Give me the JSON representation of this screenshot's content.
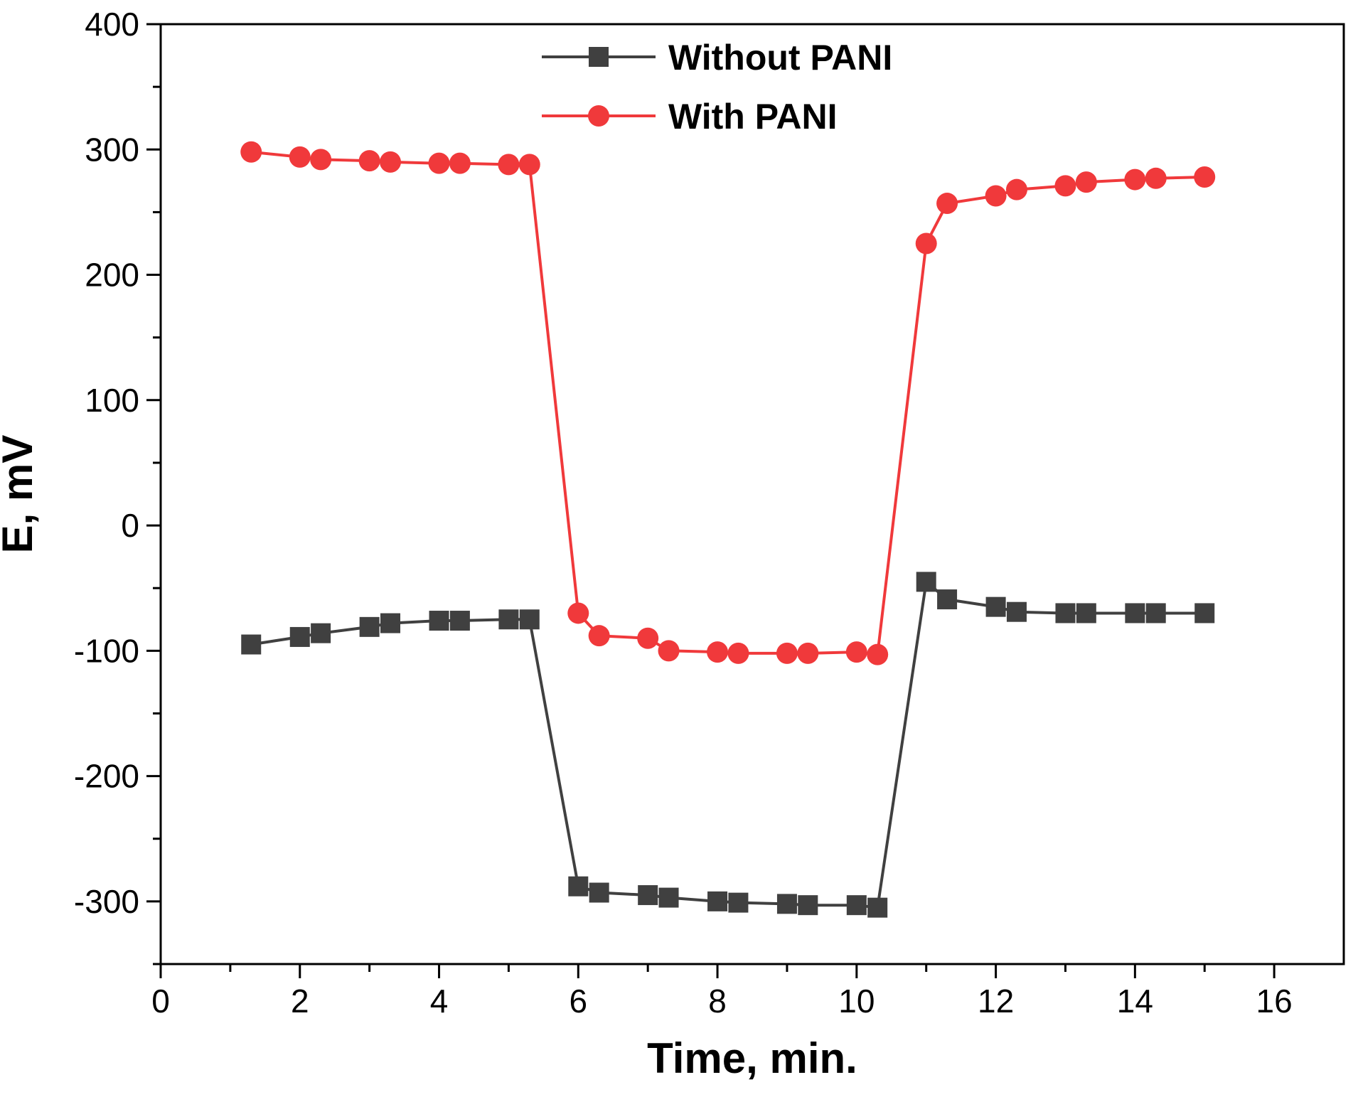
{
  "chart_data": {
    "type": "line",
    "title": "",
    "xlabel": "Time, min.",
    "ylabel": "E, mV",
    "xlim": [
      0,
      17
    ],
    "ylim": [
      -350,
      400
    ],
    "xticks": [
      0,
      2,
      4,
      6,
      8,
      10,
      12,
      14,
      16
    ],
    "yticks": [
      -300,
      -200,
      -100,
      0,
      100,
      200,
      300,
      400
    ],
    "xtick_labels": [
      "0",
      "2",
      "4",
      "6",
      "8",
      "10",
      "12",
      "14",
      "16"
    ],
    "ytick_labels": [
      "-300",
      "-200",
      "-100",
      "0",
      "100",
      "200",
      "300",
      "400"
    ],
    "grid": false,
    "legend_position": "top-center",
    "x": [
      1.3,
      2,
      2.3,
      3,
      3.3,
      4,
      4.3,
      5,
      5.3,
      6,
      6.3,
      7,
      7.3,
      8,
      8.3,
      9,
      9.3,
      10,
      10.3,
      11,
      11.3,
      12,
      12.3,
      13,
      13.3,
      14,
      14.3,
      15
    ],
    "series": [
      {
        "name": "Without PANI",
        "color": "#404040",
        "marker": "square",
        "values": [
          -95,
          -89,
          -86,
          -81,
          -78,
          -76,
          -76,
          -75,
          -75,
          -288,
          -293,
          -295,
          -297,
          -300,
          -301,
          -302,
          -303,
          -303,
          -305,
          -45,
          -59,
          -65,
          -69,
          -70,
          -70,
          -70,
          -70,
          -70
        ]
      },
      {
        "name": "With PANI",
        "color": "#f0393b",
        "marker": "circle",
        "values": [
          298,
          294,
          292,
          291,
          290,
          289,
          289,
          288,
          288,
          -70,
          -88,
          -90,
          -100,
          -101,
          -102,
          -102,
          -102,
          -101,
          -103,
          225,
          257,
          263,
          268,
          271,
          274,
          276,
          277,
          278
        ]
      }
    ]
  }
}
